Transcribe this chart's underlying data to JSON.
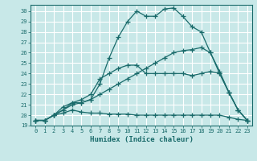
{
  "xlabel": "Humidex (Indice chaleur)",
  "bg_color": "#c8e8e8",
  "grid_color": "#ffffff",
  "line_color": "#1a6b6b",
  "xlim": [
    -0.5,
    23.5
  ],
  "ylim": [
    19,
    30.6
  ],
  "yticks": [
    19,
    20,
    21,
    22,
    23,
    24,
    25,
    26,
    27,
    28,
    29,
    30
  ],
  "xticks": [
    0,
    1,
    2,
    3,
    4,
    5,
    6,
    7,
    8,
    9,
    10,
    11,
    12,
    13,
    14,
    15,
    16,
    17,
    18,
    19,
    20,
    21,
    22,
    23
  ],
  "curve1_x": [
    0,
    1,
    2,
    3,
    4,
    5,
    6,
    7,
    8,
    9,
    10,
    11,
    12,
    13,
    14,
    15,
    16,
    17,
    18,
    19,
    20,
    21,
    22,
    23
  ],
  "curve1_y": [
    19.5,
    19.5,
    20.0,
    20.2,
    20.5,
    20.3,
    20.2,
    20.2,
    20.1,
    20.1,
    20.1,
    20.0,
    20.0,
    20.0,
    20.0,
    20.0,
    20.0,
    20.0,
    20.0,
    20.0,
    20.0,
    19.8,
    19.6,
    19.5
  ],
  "curve2_x": [
    0,
    1,
    2,
    3,
    4,
    5,
    6,
    7,
    8,
    9,
    10,
    11,
    12,
    13,
    14,
    15,
    16,
    17,
    18,
    19,
    20,
    21,
    22,
    23
  ],
  "curve2_y": [
    19.5,
    19.5,
    20.0,
    20.5,
    21.0,
    21.2,
    21.5,
    22.0,
    22.5,
    23.0,
    23.5,
    24.0,
    24.5,
    25.0,
    25.5,
    26.0,
    26.2,
    26.3,
    26.5,
    26.0,
    24.2,
    22.2,
    20.5,
    19.5
  ],
  "curve3_x": [
    0,
    1,
    2,
    3,
    4,
    5,
    6,
    7,
    8,
    9,
    10,
    11,
    12,
    13,
    14,
    15,
    16,
    17,
    18,
    19,
    20,
    21,
    22,
    23
  ],
  "curve3_y": [
    19.5,
    19.5,
    20.0,
    20.8,
    21.2,
    21.5,
    22.0,
    23.5,
    24.0,
    24.5,
    24.8,
    24.8,
    24.0,
    24.0,
    24.0,
    24.0,
    24.0,
    23.8,
    24.0,
    24.2,
    24.0,
    22.2,
    20.5,
    19.5
  ],
  "curve4_x": [
    0,
    1,
    2,
    3,
    4,
    5,
    6,
    7,
    8,
    9,
    10,
    11,
    12,
    13,
    14,
    15,
    16,
    17,
    18,
    19,
    20,
    21,
    22,
    23
  ],
  "curve4_y": [
    19.5,
    19.5,
    20.0,
    20.5,
    21.2,
    21.2,
    21.5,
    23.0,
    25.5,
    27.5,
    29.0,
    30.0,
    29.5,
    29.5,
    30.2,
    30.3,
    29.5,
    28.5,
    28.0,
    26.0,
    24.0,
    22.2,
    20.5,
    19.5
  ]
}
